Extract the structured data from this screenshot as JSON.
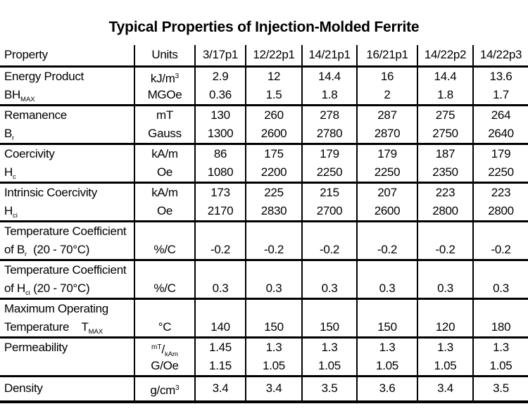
{
  "title": "Typical Properties of Injection-Molded Ferrite",
  "colors": {
    "text": "#000000",
    "background": "#ffffff",
    "rule": "#000000"
  },
  "table": {
    "columns": [
      "Property",
      "Units",
      "3/17p1",
      "12/22p1",
      "14/21p1",
      "16/21p1",
      "14/22p2",
      "14/22p3"
    ],
    "rows": [
      {
        "name": "energy-product",
        "property": [
          "Energy Product",
          [
            {
              "t": "BH"
            },
            {
              "t": "MAX",
              "s": "sub"
            }
          ]
        ],
        "units": [
          [
            {
              "t": "kJ/m"
            },
            {
              "t": "3",
              "s": "sup"
            }
          ],
          "MGOe"
        ],
        "values": [
          [
            "2.9",
            "0.36"
          ],
          [
            "12",
            "1.5"
          ],
          [
            "14.4",
            "1.8"
          ],
          [
            "16",
            "2"
          ],
          [
            "14.4",
            "1.8"
          ],
          [
            "13.6",
            "1.7"
          ]
        ]
      },
      {
        "name": "remanence",
        "property": [
          "Remanence",
          [
            {
              "t": "B"
            },
            {
              "t": "r",
              "s": "sub"
            }
          ]
        ],
        "units": [
          "mT",
          "Gauss"
        ],
        "values": [
          [
            "130",
            "1300"
          ],
          [
            "260",
            "2600"
          ],
          [
            "278",
            "2780"
          ],
          [
            "287",
            "2870"
          ],
          [
            "275",
            "2750"
          ],
          [
            "264",
            "2640"
          ]
        ]
      },
      {
        "name": "coercivity",
        "property": [
          "Coercivity",
          [
            {
              "t": "H"
            },
            {
              "t": "c",
              "s": "sub"
            }
          ]
        ],
        "units": [
          "kA/m",
          "Oe"
        ],
        "values": [
          [
            "86",
            "1080"
          ],
          [
            "175",
            "2200"
          ],
          [
            "179",
            "2250"
          ],
          [
            "179",
            "2250"
          ],
          [
            "187",
            "2350"
          ],
          [
            "179",
            "2250"
          ]
        ]
      },
      {
        "name": "intrinsic-coercivity",
        "property": [
          "Intrinsic Coercivity",
          [
            {
              "t": "H"
            },
            {
              "t": "ci",
              "s": "sub"
            }
          ]
        ],
        "units": [
          "kA/m",
          "Oe"
        ],
        "values": [
          [
            "173",
            "2170"
          ],
          [
            "225",
            "2830"
          ],
          [
            "215",
            "2700"
          ],
          [
            "207",
            "2600"
          ],
          [
            "223",
            "2800"
          ],
          [
            "223",
            "2800"
          ]
        ]
      },
      {
        "name": "temperature-coefficient-br",
        "property": [
          "Temperature Coefficient",
          [
            {
              "t": "of B"
            },
            {
              "t": "r",
              "s": "sub"
            },
            {
              "t": "  (20 - 70°C)"
            }
          ]
        ],
        "units": [
          "",
          "%/C"
        ],
        "values": [
          [
            "",
            "-0.2"
          ],
          [
            "",
            "-0.2"
          ],
          [
            "",
            "-0.2"
          ],
          [
            "",
            "-0.2"
          ],
          [
            "",
            "-0.2"
          ],
          [
            "",
            "-0.2"
          ]
        ]
      },
      {
        "name": "temperature-coefficient-hci",
        "property": [
          "Temperature Coefficient",
          [
            {
              "t": "of H"
            },
            {
              "t": "ci",
              "s": "sub"
            },
            {
              "t": " (20 - 70°C)"
            }
          ]
        ],
        "units": [
          "",
          "%/C"
        ],
        "values": [
          [
            "",
            "0.3"
          ],
          [
            "",
            "0.3"
          ],
          [
            "",
            "0.3"
          ],
          [
            "",
            "0.3"
          ],
          [
            "",
            "0.3"
          ],
          [
            "",
            "0.3"
          ]
        ]
      },
      {
        "name": "maximum-operating-temperature",
        "property": [
          "Maximum Operating",
          [
            {
              "t": "Temperature    T"
            },
            {
              "t": "MAX",
              "s": "sub"
            }
          ]
        ],
        "units": [
          "",
          "°C"
        ],
        "values": [
          [
            "",
            "140"
          ],
          [
            "",
            "150"
          ],
          [
            "",
            "150"
          ],
          [
            "",
            "150"
          ],
          [
            "",
            "120"
          ],
          [
            "",
            "180"
          ]
        ]
      },
      {
        "name": "permeability",
        "property": [
          "Permeability",
          ""
        ],
        "units": [
          [
            {
              "t": "mT",
              "s": "sup"
            },
            {
              "t": "/"
            },
            {
              "t": "kAm",
              "s": "sub"
            }
          ],
          "G/Oe"
        ],
        "values": [
          [
            "1.45",
            "1.15"
          ],
          [
            "1.3",
            "1.05"
          ],
          [
            "1.3",
            "1.05"
          ],
          [
            "1.3",
            "1.05"
          ],
          [
            "1.3",
            "1.05"
          ],
          [
            "1.3",
            "1.05"
          ]
        ]
      },
      {
        "name": "density",
        "property": [
          "Density"
        ],
        "units": [
          [
            {
              "t": "g/cm"
            },
            {
              "t": "3",
              "s": "sup"
            }
          ]
        ],
        "values": [
          [
            "3.4"
          ],
          [
            "3.4"
          ],
          [
            "3.5"
          ],
          [
            "3.6"
          ],
          [
            "3.4"
          ],
          [
            "3.5"
          ]
        ]
      }
    ]
  }
}
